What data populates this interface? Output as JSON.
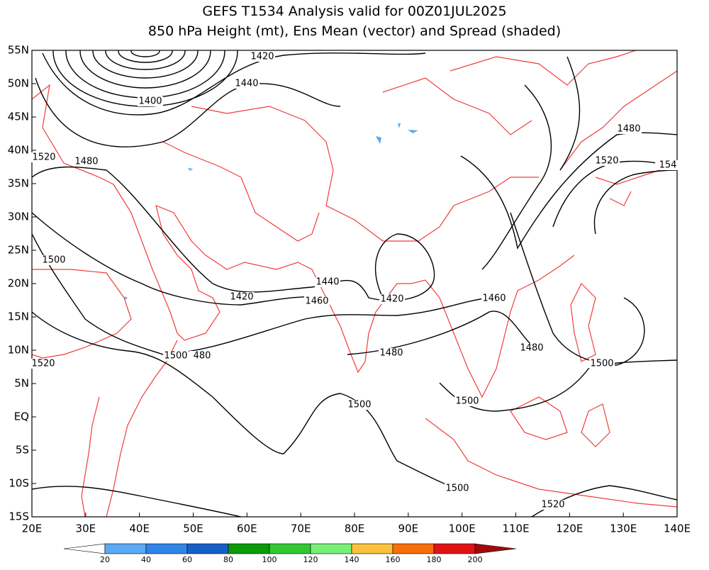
{
  "map": {
    "title": "GEFS T1534 Analysis valid for 00Z01JUL2025",
    "subtitle": "850 hPa Height (mt), Ens Mean (vector) and Spread (shaded)",
    "lonlim": [
      20,
      140
    ],
    "latlim": [
      -15,
      55
    ],
    "lon_ticks": [
      {
        "value": 20,
        "label": "20E"
      },
      {
        "value": 30,
        "label": "30E"
      },
      {
        "value": 40,
        "label": "40E"
      },
      {
        "value": 50,
        "label": "50E"
      },
      {
        "value": 60,
        "label": "60E"
      },
      {
        "value": 70,
        "label": "70E"
      },
      {
        "value": 80,
        "label": "80E"
      },
      {
        "value": 90,
        "label": "90E"
      },
      {
        "value": 100,
        "label": "100E"
      },
      {
        "value": 110,
        "label": "110E"
      },
      {
        "value": 120,
        "label": "120E"
      },
      {
        "value": 130,
        "label": "130E"
      },
      {
        "value": 140,
        "label": "140E"
      }
    ],
    "lat_ticks": [
      {
        "value": 55,
        "label": "55N"
      },
      {
        "value": 50,
        "label": "50N"
      },
      {
        "value": 45,
        "label": "45N"
      },
      {
        "value": 40,
        "label": "40N"
      },
      {
        "value": 35,
        "label": "35N"
      },
      {
        "value": 30,
        "label": "30N"
      },
      {
        "value": 25,
        "label": "25N"
      },
      {
        "value": 20,
        "label": "20N"
      },
      {
        "value": 15,
        "label": "15N"
      },
      {
        "value": 10,
        "label": "10N"
      },
      {
        "value": 5,
        "label": "5N"
      },
      {
        "value": 0,
        "label": "EQ"
      },
      {
        "value": -5,
        "label": "5S"
      },
      {
        "value": -10,
        "label": "10S"
      },
      {
        "value": -15,
        "label": "15S"
      }
    ],
    "contour_labels": [
      1420,
      1440,
      1400,
      1520,
      1480,
      1500,
      1420,
      1440,
      1460,
      1420,
      1460,
      1480,
      1480,
      1500,
      480,
      1520,
      1500,
      1500,
      1500,
      1500,
      1520,
      1480,
      1520,
      154
    ],
    "colorbar": {
      "bounds": [
        20,
        40,
        60,
        80,
        100,
        120,
        140,
        160,
        180,
        200
      ],
      "colors": [
        "#ffffff",
        "#5aaaf5",
        "#2f86e8",
        "#1560c8",
        "#0a9a0a",
        "#32c832",
        "#78f078",
        "#fac23c",
        "#fa6e0a",
        "#e01414",
        "#a00a0a"
      ]
    }
  }
}
